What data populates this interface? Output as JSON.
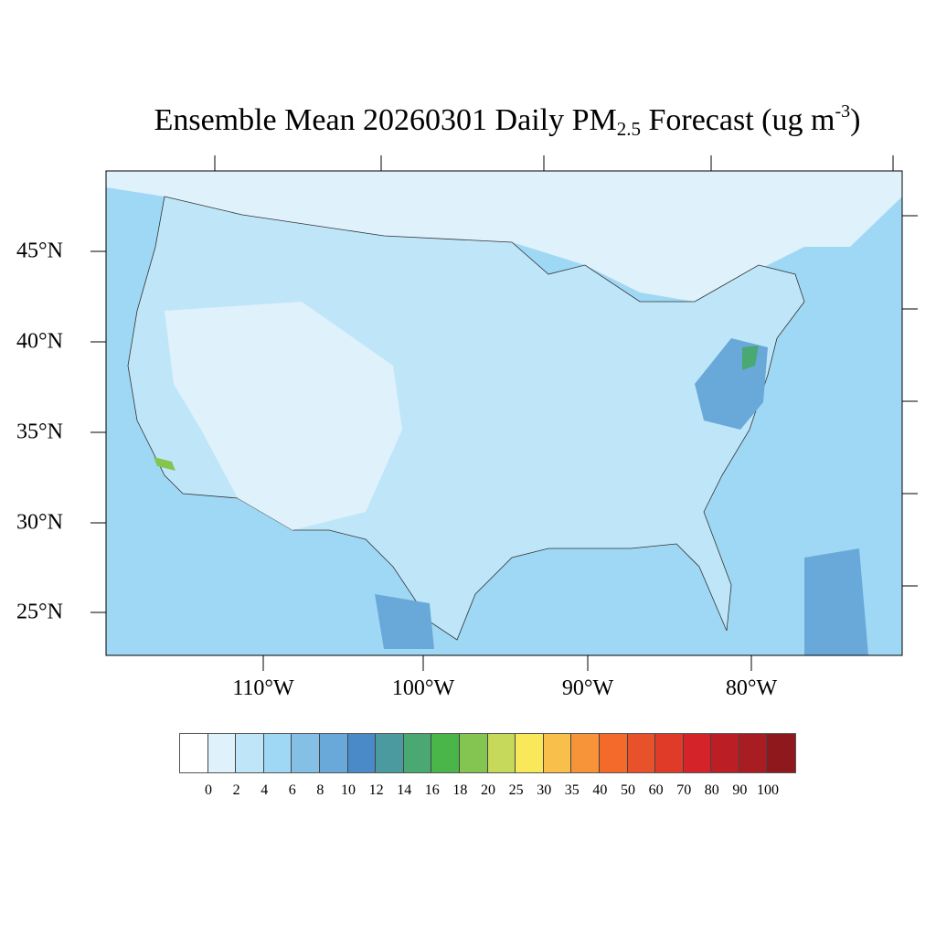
{
  "title": {
    "main": "Ensemble Mean 20260301 Daily PM",
    "subscript": "2.5",
    "after": " Forecast (ug m",
    "superscript": "-3",
    "close": ")"
  },
  "lat_labels": [
    "45°N",
    "40°N",
    "35°N",
    "30°N",
    "25°N"
  ],
  "lon_labels": [
    "110°W",
    "100°W",
    "90°W",
    "80°W"
  ],
  "colorbar": {
    "levels": [
      "0",
      "2",
      "4",
      "6",
      "8",
      "10",
      "12",
      "14",
      "16",
      "18",
      "20",
      "25",
      "30",
      "35",
      "40",
      "50",
      "60",
      "70",
      "80",
      "90",
      "100"
    ],
    "colors": [
      "#ffffff",
      "#dff1fb",
      "#bfe6f8",
      "#9fd8f5",
      "#84c0e6",
      "#68a9da",
      "#4a8ac8",
      "#4a9aa0",
      "#4aa873",
      "#4ab548",
      "#84c552",
      "#c6d95a",
      "#f8e85a",
      "#f8bf4a",
      "#f7943a",
      "#f46a2b",
      "#e8522a",
      "#e03a28",
      "#d5232a",
      "#bc1e25",
      "#a81d22",
      "#8e181b"
    ]
  }
}
